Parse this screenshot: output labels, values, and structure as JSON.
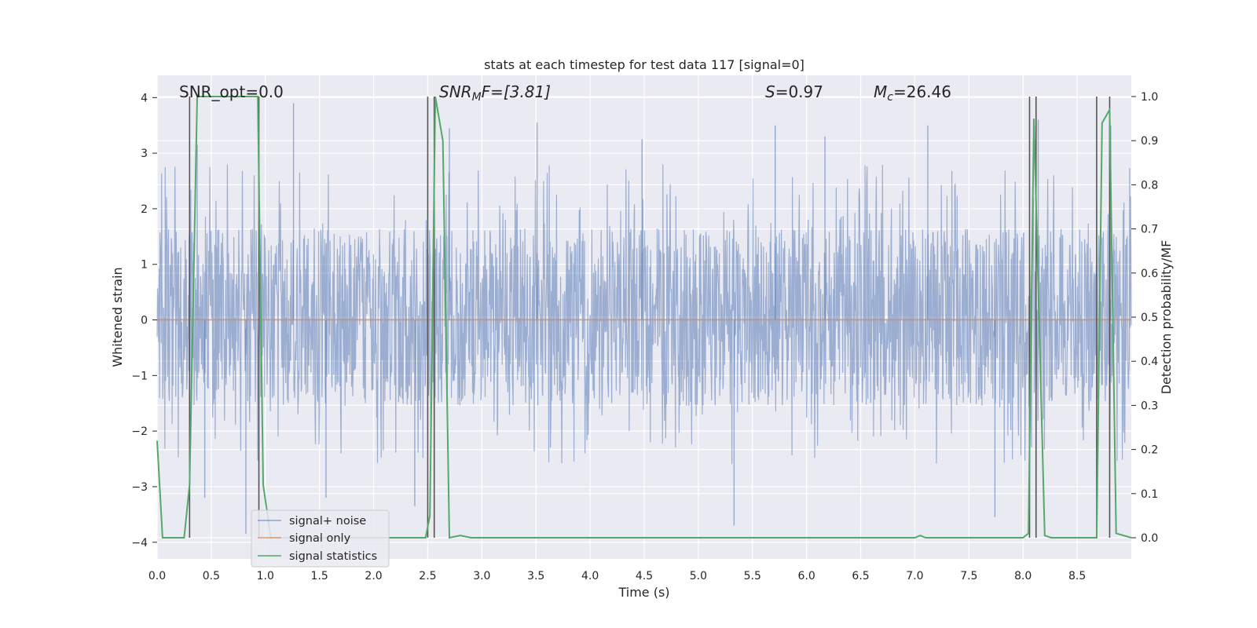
{
  "chart_data": {
    "type": "line",
    "title": "stats at each timestep for test data 117 [signal=0]",
    "xlabel": "Time (s)",
    "ylabel": "Whitened strain",
    "y2label": "Detection probability/MF",
    "xlim": [
      0.0,
      9.0
    ],
    "ylim": [
      -4.3,
      4.4
    ],
    "y2lim": [
      -0.048,
      1.048
    ],
    "x_ticks": [
      "0.0",
      "0.5",
      "1.0",
      "1.5",
      "2.0",
      "2.5",
      "3.0",
      "3.5",
      "4.0",
      "4.5",
      "5.0",
      "5.5",
      "6.0",
      "6.5",
      "7.0",
      "7.5",
      "8.0",
      "8.5"
    ],
    "x_tick_values": [
      0.0,
      0.5,
      1.0,
      1.5,
      2.0,
      2.5,
      3.0,
      3.5,
      4.0,
      4.5,
      5.0,
      5.5,
      6.0,
      6.5,
      7.0,
      7.5,
      8.0,
      8.5
    ],
    "y_ticks": [
      "4",
      "3",
      "2",
      "1",
      "0",
      "−1",
      "−2",
      "−3",
      "−4"
    ],
    "y_tick_values": [
      4,
      3,
      2,
      1,
      0,
      -1,
      -2,
      -3,
      -4
    ],
    "y2_ticks": [
      "1.0",
      "0.9",
      "0.8",
      "0.7",
      "0.6",
      "0.5",
      "0.4",
      "0.3",
      "0.2",
      "0.1",
      "0.0"
    ],
    "y2_tick_values": [
      1.0,
      0.9,
      0.8,
      0.7,
      0.6,
      0.5,
      0.4,
      0.3,
      0.2,
      0.1,
      0.0
    ],
    "annotations": {
      "snr_opt": "SNR_opt=0.0",
      "snr_mf_main": "SNR",
      "snr_mf_sub": "M",
      "snr_mf_rest": "F=[3.81]",
      "s_label": "S",
      "s_rest": "=0.97",
      "mc_label": "M",
      "mc_sub": "c",
      "mc_rest": "=26.46"
    },
    "legend": {
      "position": "lower-left",
      "entries": [
        "signal+ noise",
        "signal only",
        "signal statistics"
      ]
    },
    "vertical_lines_x": [
      0.3,
      0.94,
      2.5,
      2.56,
      8.06,
      8.12,
      8.68,
      8.8
    ],
    "series": [
      {
        "name": "signal+ noise",
        "color": "#4c72b0",
        "envelope_y": [
          -1.55,
          1.65
        ],
        "spike_extrema_y": [
          {
            "x": 0.37,
            "y": 3.15
          },
          {
            "x": 0.82,
            "y": -3.85
          },
          {
            "x": 1.26,
            "y": 3.9
          },
          {
            "x": 2.7,
            "y": 3.45
          },
          {
            "x": 3.51,
            "y": 3.55
          },
          {
            "x": 4.48,
            "y": 3.25
          },
          {
            "x": 5.33,
            "y": -3.7
          },
          {
            "x": 5.71,
            "y": 3.5
          },
          {
            "x": 6.17,
            "y": 3.3
          },
          {
            "x": 7.12,
            "y": 3.5
          },
          {
            "x": 7.74,
            "y": -3.55
          },
          {
            "x": 8.14,
            "y": 3.6
          },
          {
            "x": 8.81,
            "y": 3.5
          },
          {
            "x": 0.44,
            "y": -3.2
          },
          {
            "x": 1.56,
            "y": -3.2
          },
          {
            "x": 2.38,
            "y": -3.35
          }
        ]
      },
      {
        "name": "signal only",
        "color": "#dd8452",
        "x": [
          0.0,
          9.0
        ],
        "y": [
          0.0,
          0.0
        ]
      },
      {
        "name": "signal statistics",
        "color": "#55a868",
        "x": [
          0.0,
          0.05,
          0.25,
          0.3,
          0.37,
          0.93,
          0.98,
          1.05,
          2.0,
          2.48,
          2.52,
          2.57,
          2.64,
          2.7,
          2.8,
          2.9,
          7.0,
          7.05,
          7.1,
          8.0,
          8.05,
          8.1,
          8.2,
          8.26,
          8.3,
          8.68,
          8.73,
          8.8,
          8.86,
          9.0
        ],
        "y": [
          0.22,
          0.0,
          0.0,
          0.12,
          1.0,
          1.0,
          0.12,
          0.0,
          0.0,
          0.0,
          0.05,
          1.0,
          0.9,
          0.0,
          0.005,
          0.0,
          0.0,
          0.005,
          0.0,
          0.0,
          0.01,
          0.95,
          0.005,
          0.0,
          0.0,
          0.0,
          0.94,
          0.97,
          0.01,
          0.0
        ]
      }
    ]
  }
}
